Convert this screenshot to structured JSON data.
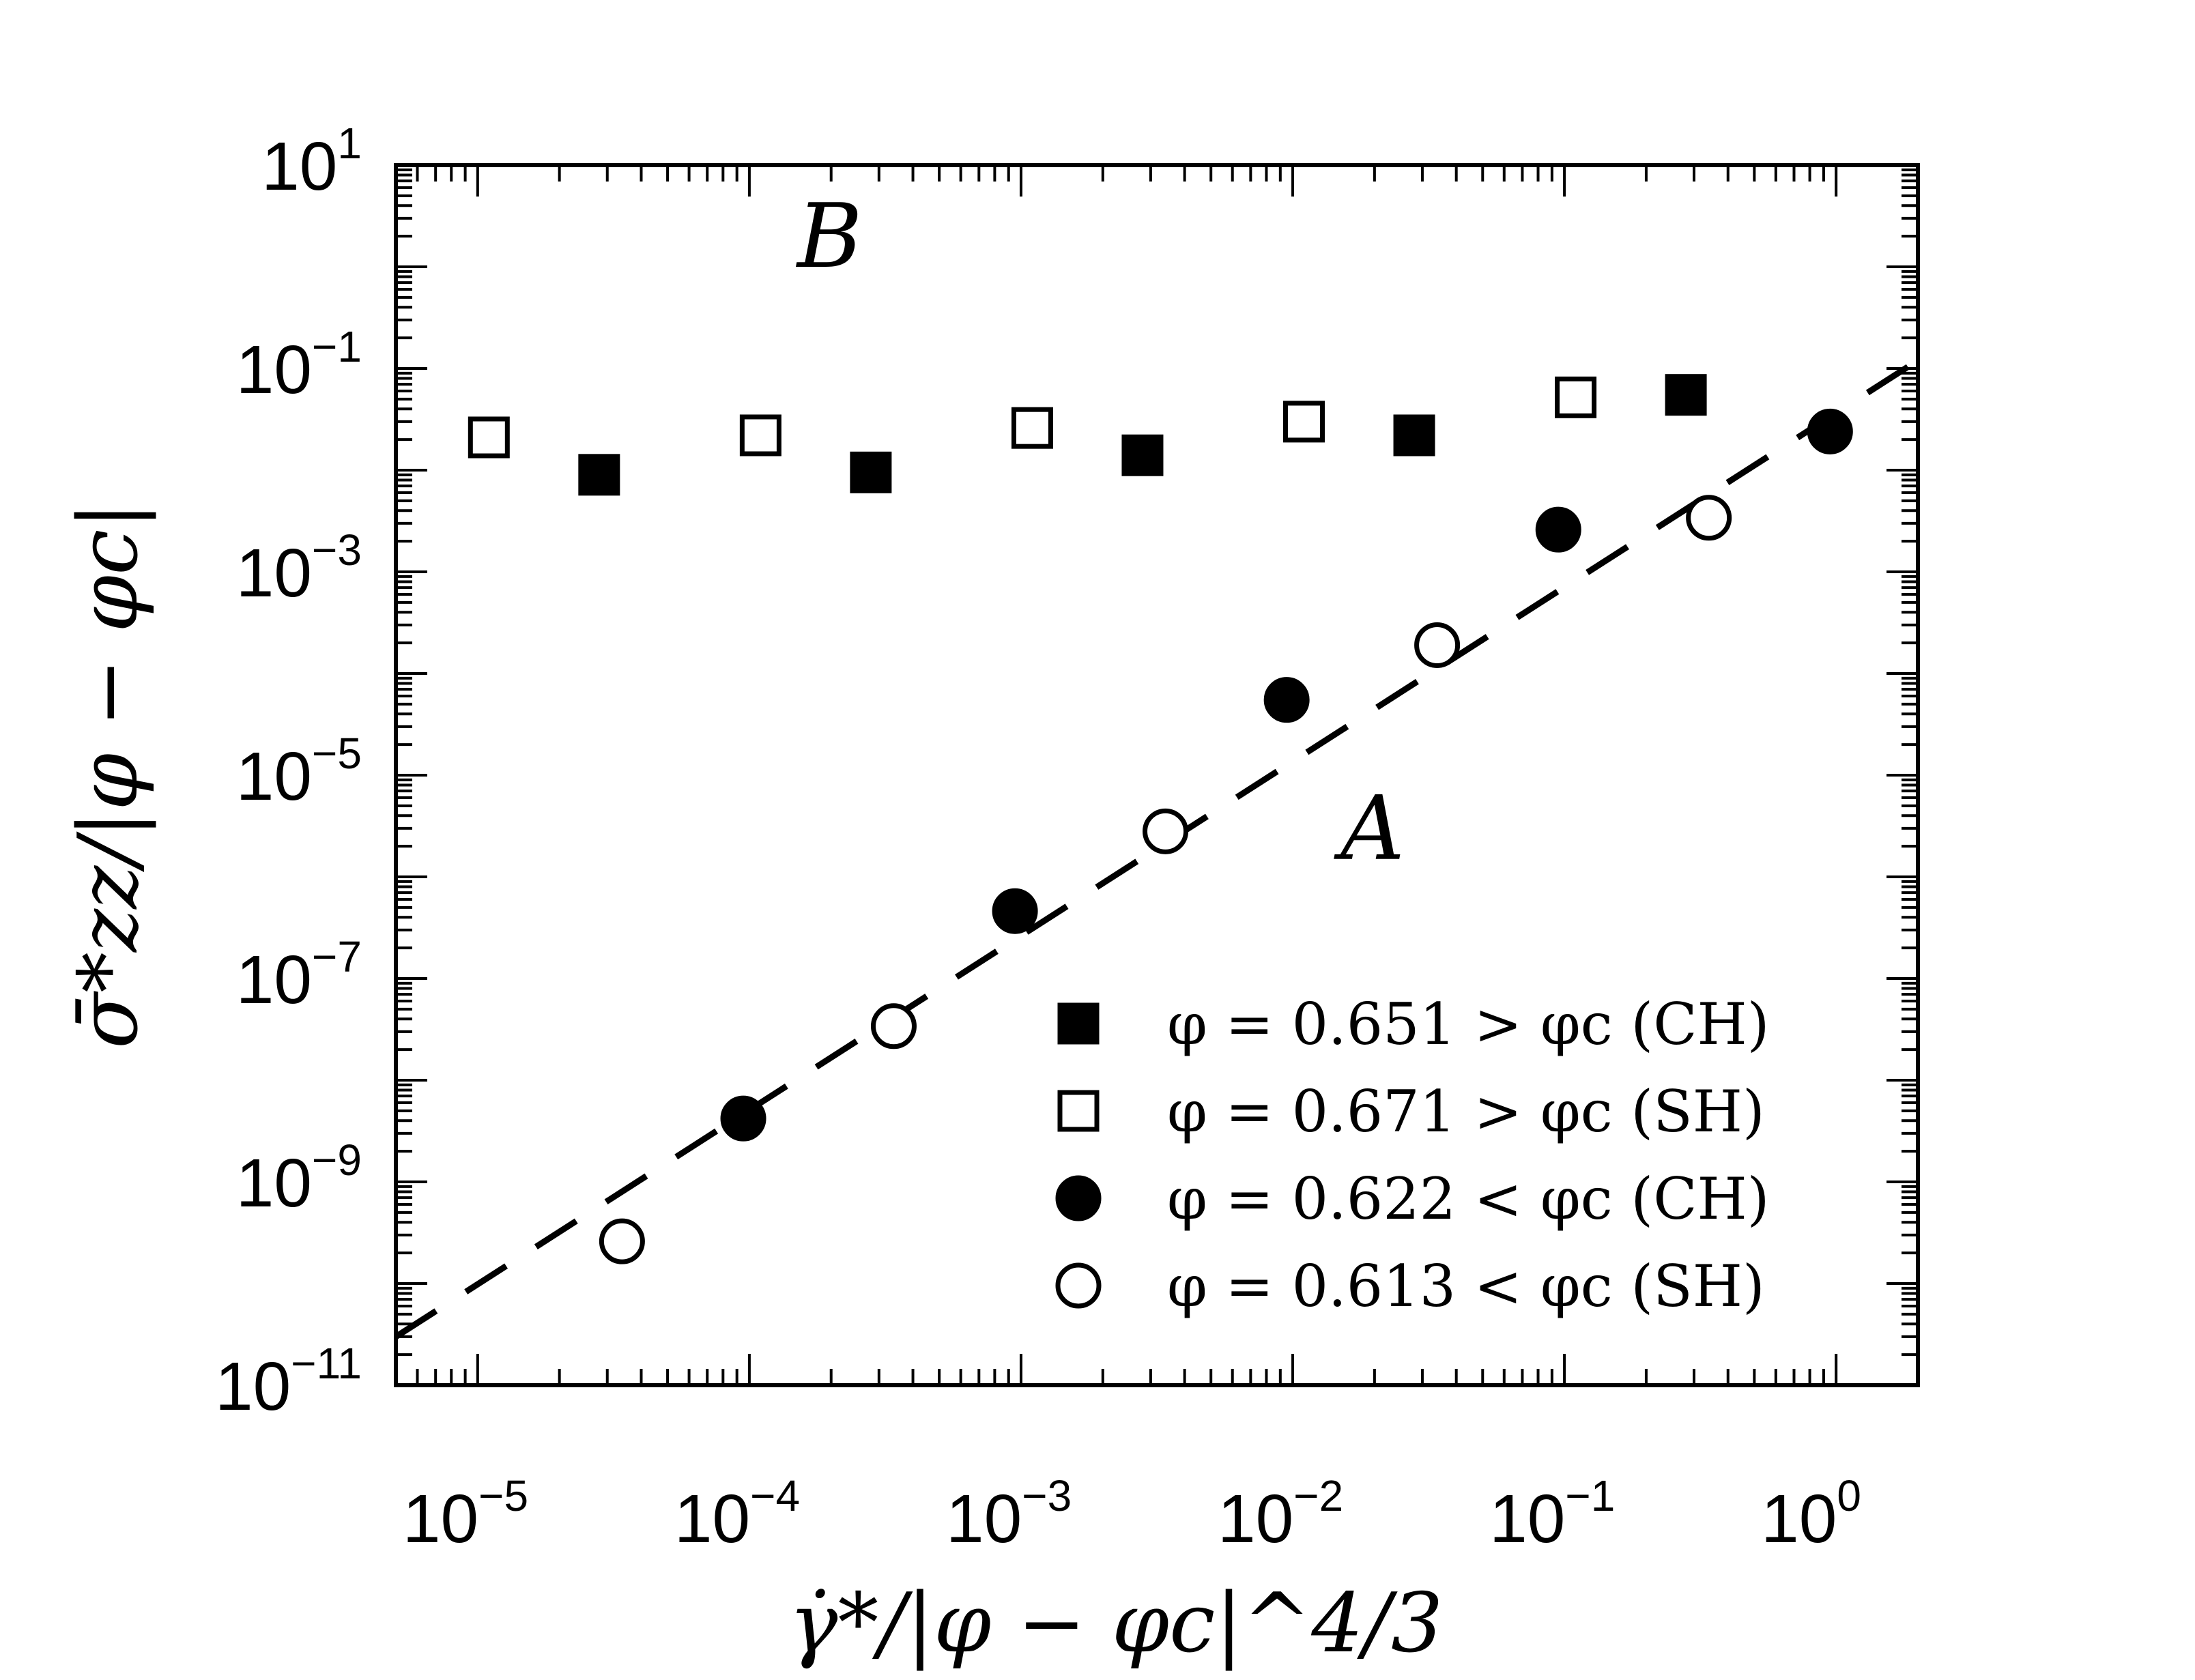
{
  "chart_data": {
    "type": "scatter",
    "title": "",
    "xlabel": "γ̇*/|φ − φc|^4/3",
    "ylabel": "σ̄*zz/|φ − φc|",
    "xscale": "log",
    "yscale": "log",
    "xlim": [
      5e-06,
      2
    ],
    "ylim": [
      1e-11,
      10
    ],
    "x_tick_labels": [
      {
        "base": "10",
        "exp": "−5",
        "value": 1e-05
      },
      {
        "base": "10",
        "exp": "−4",
        "value": 0.0001
      },
      {
        "base": "10",
        "exp": "−3",
        "value": 0.001
      },
      {
        "base": "10",
        "exp": "−2",
        "value": 0.01
      },
      {
        "base": "10",
        "exp": "−1",
        "value": 0.1
      },
      {
        "base": "10",
        "exp": "0",
        "value": 1
      }
    ],
    "y_tick_labels": [
      {
        "base": "10",
        "exp": "1",
        "value": 10
      },
      {
        "base": "10",
        "exp": "−1",
        "value": 0.1
      },
      {
        "base": "10",
        "exp": "−3",
        "value": 0.001
      },
      {
        "base": "10",
        "exp": "−5",
        "value": 1e-05
      },
      {
        "base": "10",
        "exp": "−7",
        "value": 1e-07
      },
      {
        "base": "10",
        "exp": "−9",
        "value": 1e-09
      },
      {
        "base": "10",
        "exp": "−11",
        "value": 1e-11
      }
    ],
    "annotations": [
      {
        "text": "B",
        "x": 0.00015,
        "y": 1
      },
      {
        "text": "A",
        "x": 0.015,
        "y": 1.5e-06
      }
    ],
    "reference_line": {
      "style": "dashed",
      "color": "#000000",
      "x": [
        5e-06,
        2
      ],
      "y": [
        3e-11,
        0.12
      ]
    },
    "legend_position": "bottom-right",
    "series": [
      {
        "name": "φ = 0.651 > φc (CH)",
        "marker": "square-filled",
        "x": [
          2.8e-05,
          0.00028,
          0.0028,
          0.028,
          0.28
        ],
        "y": [
          0.009,
          0.0095,
          0.014,
          0.022,
          0.055
        ]
      },
      {
        "name": "φ = 0.671 > φc (SH)",
        "marker": "square-open",
        "x": [
          1.1e-05,
          0.00011,
          0.0011,
          0.011,
          0.11
        ],
        "y": [
          0.021,
          0.022,
          0.026,
          0.03,
          0.052
        ]
      },
      {
        "name": "φ = 0.622 < φc (CH)",
        "marker": "circle-filled",
        "x": [
          9.5e-05,
          0.00095,
          0.0095,
          0.095,
          0.95
        ],
        "y": [
          4.2e-09,
          4.6e-07,
          5.5e-05,
          0.0026,
          0.024
        ]
      },
      {
        "name": "φ = 0.613 < φc (SH)",
        "marker": "circle-open",
        "x": [
          3.4e-05,
          0.00034,
          0.0034,
          0.034,
          0.34
        ],
        "y": [
          2.6e-10,
          3.4e-08,
          2.8e-06,
          0.00019,
          0.0034
        ]
      }
    ]
  }
}
